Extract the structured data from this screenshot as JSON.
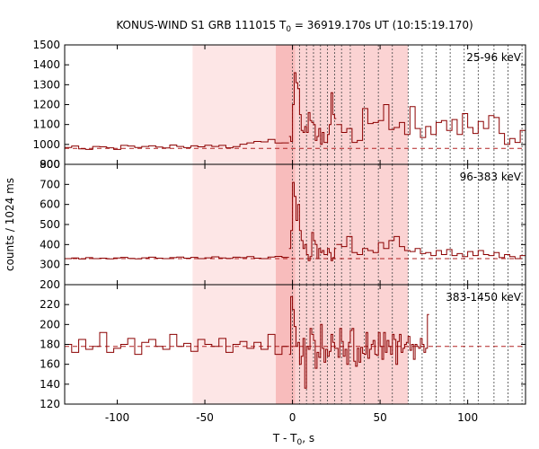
{
  "chart_data": {
    "type": "line",
    "title": "KONUS-WIND S1 GRB 111015 T",
    "title_sub": "0",
    "title_rest": " = 36919.170s UT (10:15:19.170)",
    "xlabel": "T - T",
    "xlabel_sub": "0",
    "xlabel_rest": ", s",
    "ylabel": "counts / 1024 ms",
    "xlim": [
      -130,
      133
    ],
    "xticks": [
      -100,
      -50,
      0,
      50,
      100
    ],
    "xtick_labels": [
      "-100",
      "-50",
      "0",
      "50",
      "100"
    ],
    "shade_light": [
      -57,
      -9.5
    ],
    "shade_mid": [
      -9.5,
      66
    ],
    "shade_dark": [
      -9.5,
      1.5
    ],
    "vlines": [
      0,
      4,
      8,
      12,
      16,
      20,
      24,
      28,
      33,
      41,
      49,
      57,
      66,
      74,
      82,
      90,
      98,
      106,
      115,
      123,
      131
    ],
    "colors": {
      "histogram": "#8b0000",
      "background_fit": "#b22222",
      "shade_light": "#fde6e6",
      "shade_mid": "#fbd3d3",
      "shade_dark": "#f8bcbc"
    },
    "panels": [
      {
        "label": "25-96 keV",
        "ylim": [
          900,
          1500
        ],
        "yticks": [
          900,
          1000,
          1100,
          1200,
          1300,
          1400,
          1500
        ],
        "ytick_labels": [
          "900",
          "1000",
          "1100",
          "1200",
          "1300",
          "1400",
          "1500"
        ],
        "background": 980,
        "pre": {
          "start": -130,
          "end": -2,
          "step": 4,
          "values": [
            985,
            992,
            978,
            975,
            990,
            988,
            983,
            975,
            995,
            992,
            985,
            990,
            993,
            987,
            982,
            997,
            990,
            984,
            993,
            988,
            996,
            990,
            995,
            983,
            989,
            1001,
            1008,
            1015,
            1013,
            1025,
            1007,
            1008,
            1003,
            1012,
            1007,
            1014,
            990,
            1021,
            1006,
            1030,
            1014,
            1003,
            1025,
            1012,
            1000,
            1010,
            1008,
            1032,
            1040,
            1055,
            1040,
            1045,
            1058,
            1028,
            1031,
            1008,
            1034,
            1028,
            1025,
            1016,
            1018,
            1000,
            1022,
            1035,
            1010,
            1045,
            1055,
            1038
          ]
        },
        "burst": {
          "start": -2,
          "end": 25,
          "step": 1,
          "values": [
            1040,
            1015,
            1200,
            1360,
            1310,
            1280,
            1150,
            1070,
            1060,
            1090,
            1060,
            1160,
            1120,
            1110,
            1100,
            1020,
            1040,
            1080,
            1000,
            1060,
            1010,
            1010,
            1050,
            1100,
            1260,
            1150,
            1130
          ]
        },
        "tail": {
          "start": 25,
          "end": 133,
          "step": 3,
          "values": [
            1100,
            1060,
            1080,
            1010,
            1020,
            1180,
            1105,
            1110,
            1120,
            1200,
            1075,
            1085,
            1110,
            1050,
            1190,
            1080,
            1035,
            1090,
            1050,
            1110,
            1120,
            1070,
            1125,
            1050,
            1155,
            1085,
            1055,
            1115,
            1080,
            1145,
            1135,
            1055,
            1000,
            1030,
            1010,
            1070,
            1045
          ]
        }
      },
      {
        "label": "96-383 keV",
        "ylim": [
          200,
          800
        ],
        "yticks": [
          200,
          300,
          400,
          500,
          600,
          700,
          800
        ],
        "ytick_labels": [
          "200",
          "300",
          "400",
          "500",
          "600",
          "700",
          "800"
        ],
        "background": 330,
        "pre": {
          "start": -130,
          "end": -2,
          "step": 4,
          "values": [
            330,
            333,
            328,
            335,
            330,
            332,
            329,
            333,
            336,
            331,
            329,
            334,
            337,
            332,
            330,
            335,
            338,
            332,
            336,
            330,
            334,
            339,
            333,
            331,
            337,
            335,
            340,
            332,
            330,
            338,
            341,
            336,
            342,
            334,
            339,
            345,
            343,
            350,
            338,
            346,
            348,
            352,
            349,
            360,
            352,
            358,
            356,
            362,
            370,
            360,
            372,
            368,
            380,
            395,
            388,
            373,
            402,
            385,
            410,
            378,
            380,
            420,
            398,
            390,
            405,
            400,
            380,
            365
          ]
        },
        "burst": {
          "start": -2,
          "end": 25,
          "step": 1,
          "values": [
            380,
            470,
            710,
            640,
            520,
            600,
            470,
            420,
            380,
            400,
            350,
            320,
            340,
            460,
            420,
            400,
            330,
            380,
            360,
            370,
            350,
            350,
            380,
            360,
            320,
            335,
            380
          ]
        },
        "tail": {
          "start": 25,
          "end": 133,
          "step": 3,
          "values": [
            400,
            390,
            440,
            360,
            350,
            380,
            370,
            360,
            410,
            380,
            420,
            440,
            390,
            370,
            365,
            380,
            355,
            360,
            345,
            370,
            350,
            375,
            345,
            355,
            340,
            365,
            345,
            370,
            350,
            345,
            360,
            335,
            350,
            340,
            330,
            345,
            320
          ]
        }
      },
      {
        "label": "383-1450 keV",
        "ylim": [
          120,
          240
        ],
        "yticks": [
          120,
          140,
          160,
          180,
          200,
          220,
          240
        ],
        "ytick_labels": [
          "120",
          "140",
          "160",
          "180",
          "200",
          "220"
        ],
        "background": 178,
        "pre": {
          "start": -130,
          "end": -2,
          "step": 4,
          "values": [
            180,
            172,
            185,
            175,
            178,
            192,
            172,
            176,
            180,
            186,
            170,
            182,
            185,
            178,
            175,
            190,
            178,
            181,
            173,
            185,
            180,
            178,
            186,
            172,
            180,
            183,
            176,
            182,
            175,
            190,
            170,
            178,
            183,
            205,
            178,
            181,
            175,
            188,
            172,
            184,
            180,
            176,
            190,
            178,
            178,
            195,
            180,
            172,
            186,
            180,
            178,
            175,
            182,
            185,
            178,
            178,
            170,
            182,
            188,
            178,
            184,
            176,
            180,
            168,
            178,
            184,
            186,
            177
          ]
        },
        "burst": {
          "start": -2,
          "end": 78,
          "step": 1,
          "values": [
            170,
            228,
            215,
            198,
            178,
            182,
            160,
            168,
            186,
            136,
            178,
            175,
            196,
            190,
            184,
            156,
            172,
            167,
            200,
            176,
            162,
            175,
            168,
            173,
            190,
            182,
            176,
            176,
            167,
            196,
            183,
            168,
            175,
            160,
            182,
            194,
            196,
            163,
            158,
            176,
            162,
            177,
            171,
            170,
            192,
            166,
            175,
            180,
            184,
            170,
            169,
            192,
            178,
            165,
            192,
            172,
            184,
            178,
            170,
            190,
            185,
            160,
            183,
            190,
            172,
            176,
            180,
            182,
            188,
            174,
            180,
            165,
            180,
            178,
            176,
            186,
            180,
            172,
            176,
            210
          ]
        }
      }
    ]
  }
}
